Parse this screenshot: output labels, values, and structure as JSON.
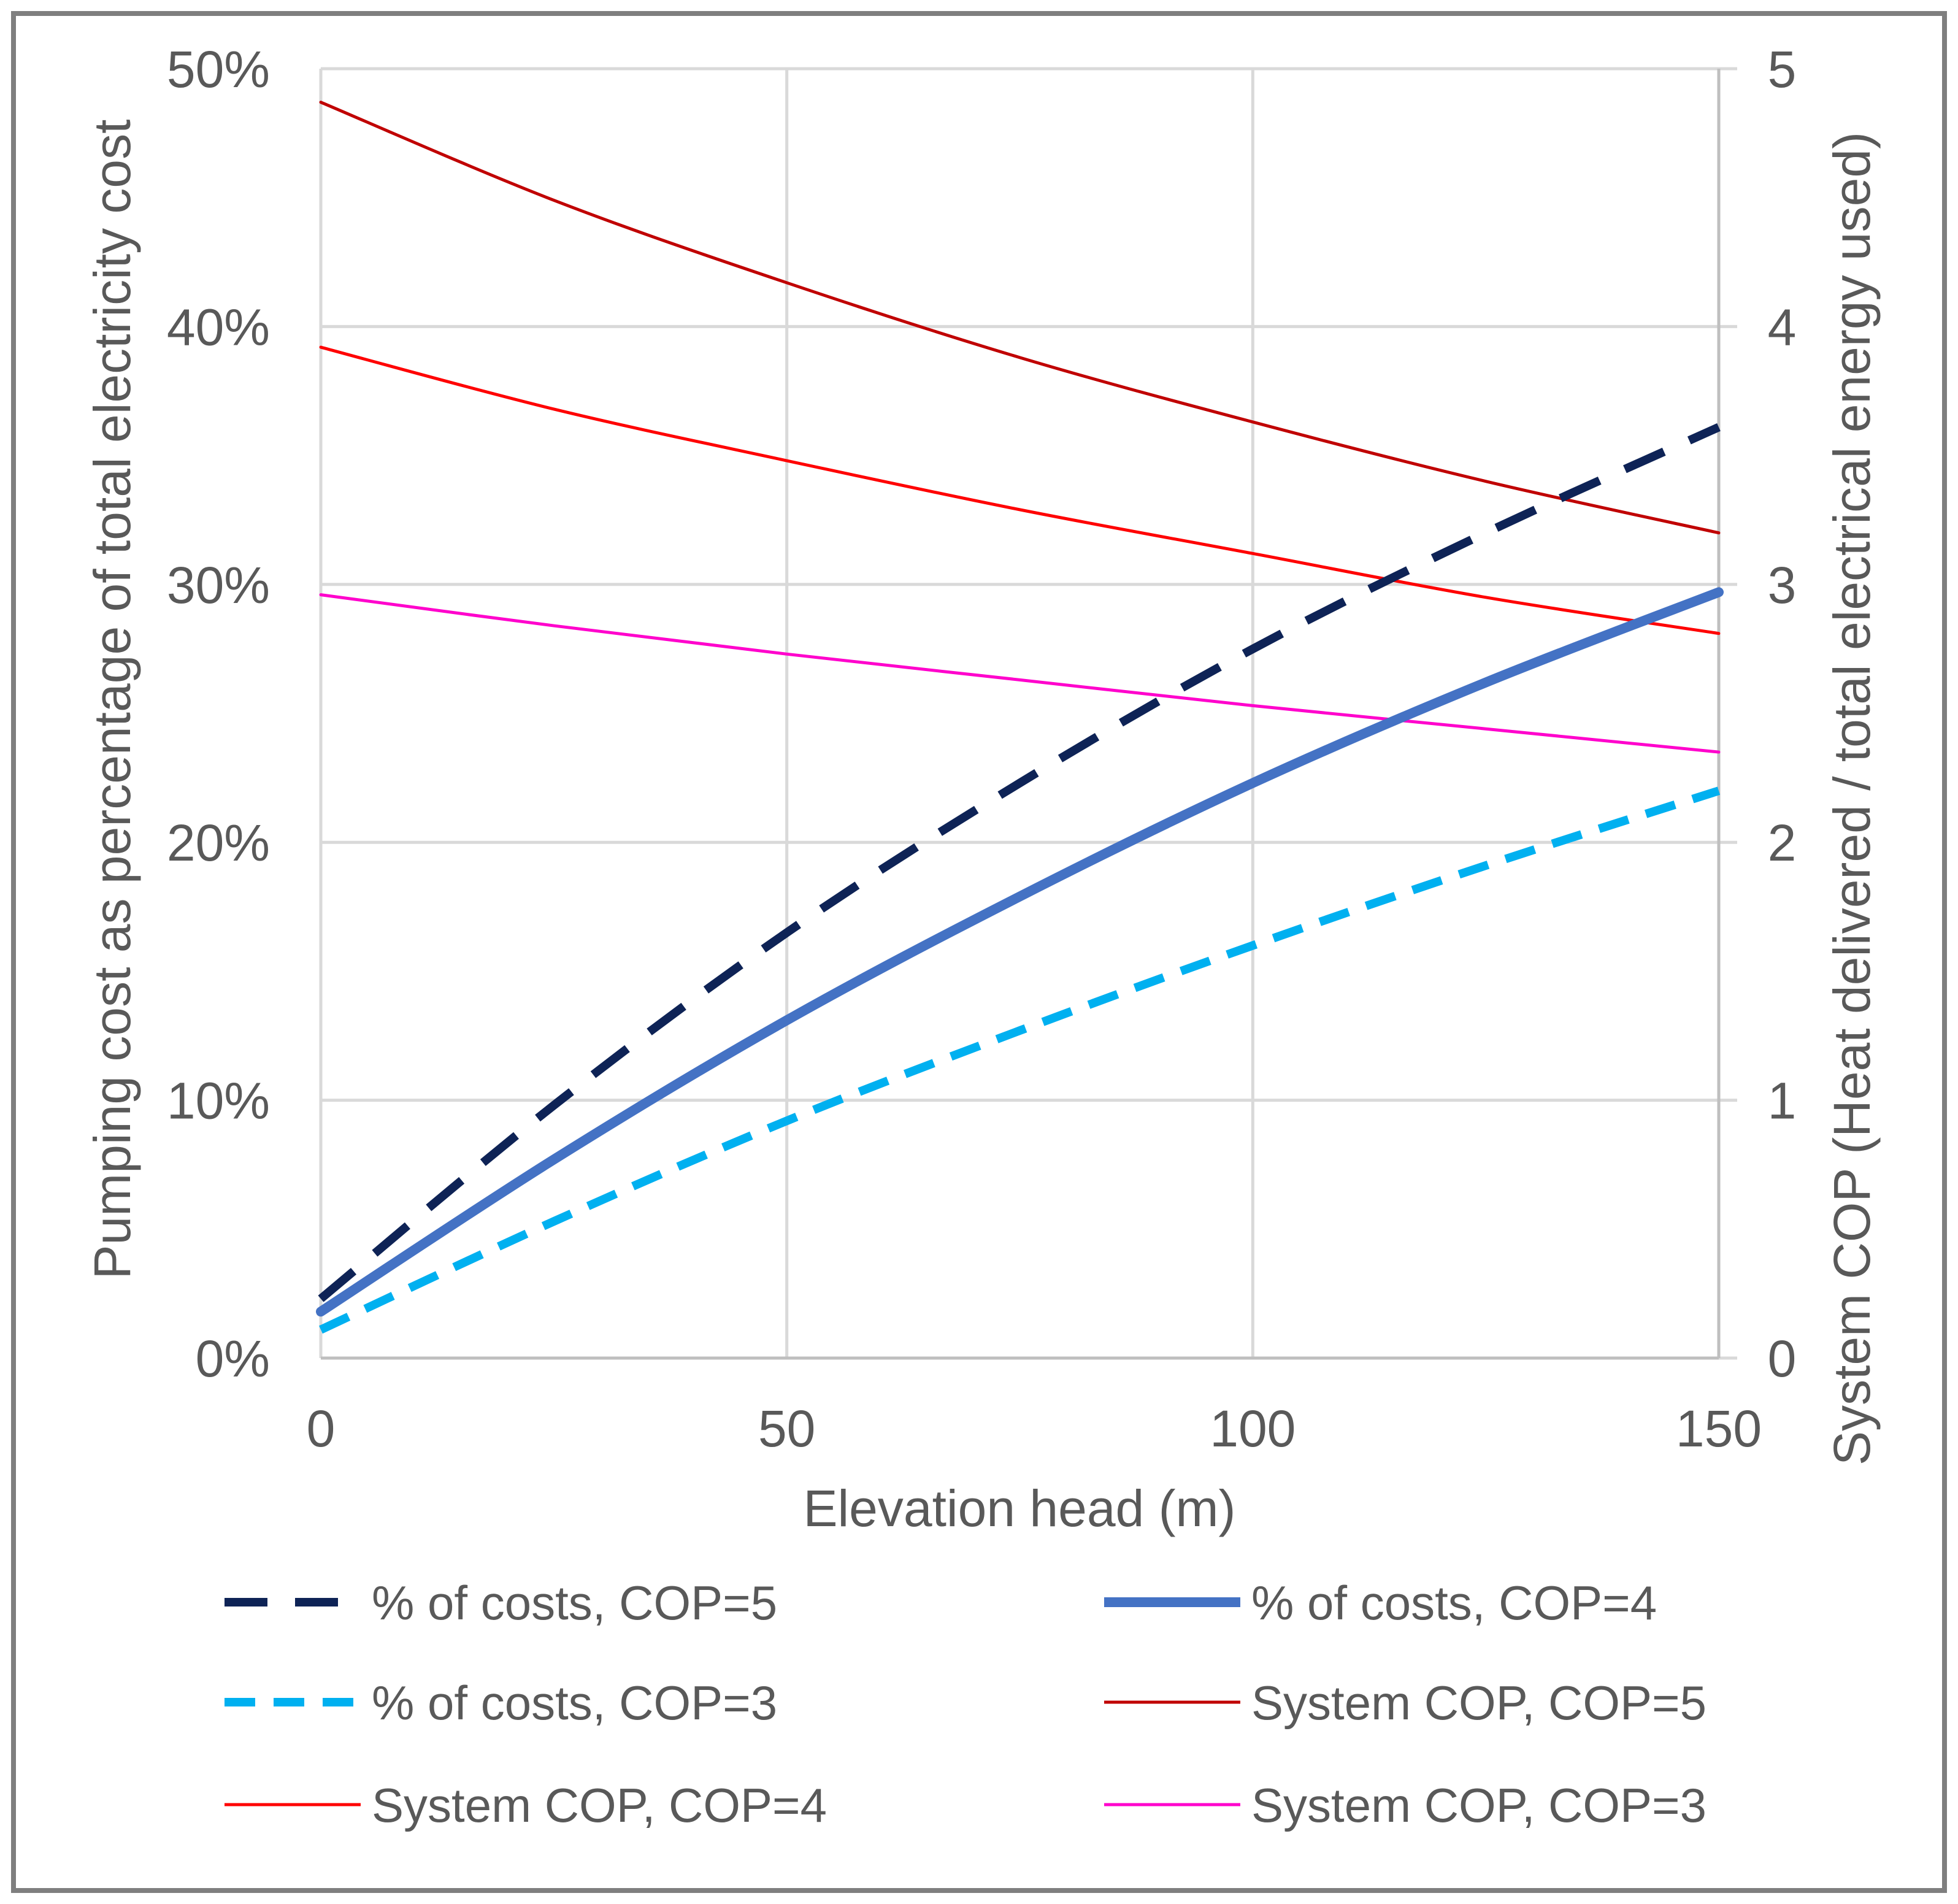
{
  "chart_data": {
    "type": "line",
    "title": "",
    "xlabel": "Elevation head (m)",
    "ylabel": "Pumping cost as percentage of total electricity cost",
    "y2label": "System COP (Heat delivered / total electrical energy used)",
    "xlim": [
      0,
      150
    ],
    "ylim": [
      0,
      50
    ],
    "y2lim": [
      0,
      5
    ],
    "grid": true,
    "legend_position": "bottom",
    "x_ticks": [
      "0",
      "50",
      "100",
      "150"
    ],
    "x_tick_values": [
      0,
      50,
      100,
      150
    ],
    "y_ticks": [
      "0%",
      "10%",
      "20%",
      "30%",
      "40%",
      "50%"
    ],
    "y_tick_values": [
      0,
      10,
      20,
      30,
      40,
      50
    ],
    "y2_ticks": [
      "0",
      "1",
      "2",
      "3",
      "4",
      "5"
    ],
    "y2_tick_values": [
      0,
      1,
      2,
      3,
      4,
      5
    ],
    "x": [
      0,
      25,
      50,
      75,
      100,
      125,
      150
    ],
    "series": [
      {
        "name": "% of costs, COP=5",
        "axis": "left",
        "color": "#0e2356",
        "style": "longdash",
        "values": [
          2.3,
          9.8,
          16.5,
          22.3,
          27.5,
          32.0,
          36.1
        ]
      },
      {
        "name": "% of costs, COP=4",
        "axis": "left",
        "color": "#4472c4",
        "style": "solid",
        "values": [
          1.8,
          7.7,
          13.1,
          17.9,
          22.3,
          26.2,
          29.7
        ]
      },
      {
        "name": "% of costs, COP=3",
        "axis": "left",
        "color": "#00b0f0",
        "style": "dash",
        "values": [
          1.1,
          5.3,
          9.2,
          12.7,
          16.0,
          19.1,
          22.0
        ]
      },
      {
        "name": "System COP, COP=5",
        "axis": "right",
        "color": "#c00000",
        "style": "solid",
        "values": [
          4.87,
          4.49,
          4.17,
          3.88,
          3.63,
          3.4,
          3.2
        ]
      },
      {
        "name": "System COP, COP=4",
        "axis": "right",
        "color": "#ff0000",
        "style": "solid",
        "values": [
          3.92,
          3.68,
          3.48,
          3.29,
          3.12,
          2.95,
          2.81
        ]
      },
      {
        "name": "System COP, COP=3",
        "axis": "right",
        "color": "#ff00cc",
        "style": "solid",
        "values": [
          2.96,
          2.84,
          2.73,
          2.63,
          2.53,
          2.44,
          2.35
        ]
      }
    ]
  }
}
